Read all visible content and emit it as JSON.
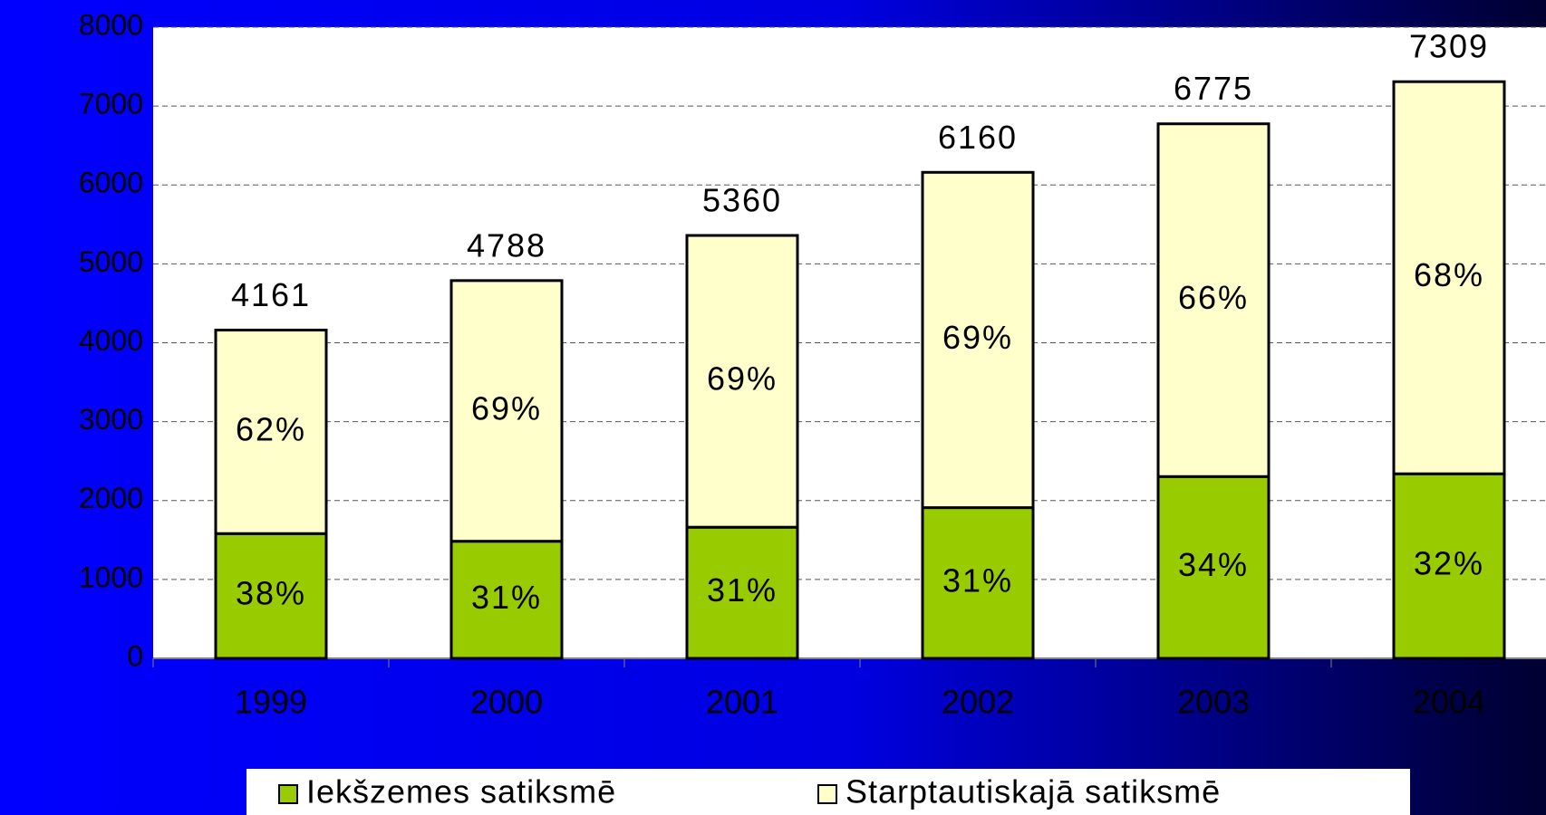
{
  "chart_data": {
    "type": "stacked_bar",
    "categories": [
      "1999",
      "2000",
      "2001",
      "2002",
      "2003",
      "2004"
    ],
    "series": [
      {
        "name": "Iekšzemes satiksmē",
        "color": "#99cc00",
        "values": [
          1581,
          1484,
          1662,
          1910,
          2304,
          2339
        ],
        "value_labels": [
          "38%",
          "31%",
          "31%",
          "31%",
          "34%",
          "32%"
        ]
      },
      {
        "name": "Starptautiskajā satiksmē",
        "color": "#ffffcc",
        "values": [
          2580,
          3304,
          3698,
          4250,
          4471,
          4970
        ],
        "value_labels": [
          "62%",
          "69%",
          "69%",
          "69%",
          "66%",
          "68%"
        ]
      }
    ],
    "totals": [
      4161,
      4788,
      5360,
      6160,
      6775,
      7309
    ],
    "ylim": [
      0,
      8000
    ],
    "yticks": [
      0,
      1000,
      2000,
      3000,
      4000,
      5000,
      6000,
      7000,
      8000
    ],
    "grid": true,
    "legend": "bottom"
  }
}
